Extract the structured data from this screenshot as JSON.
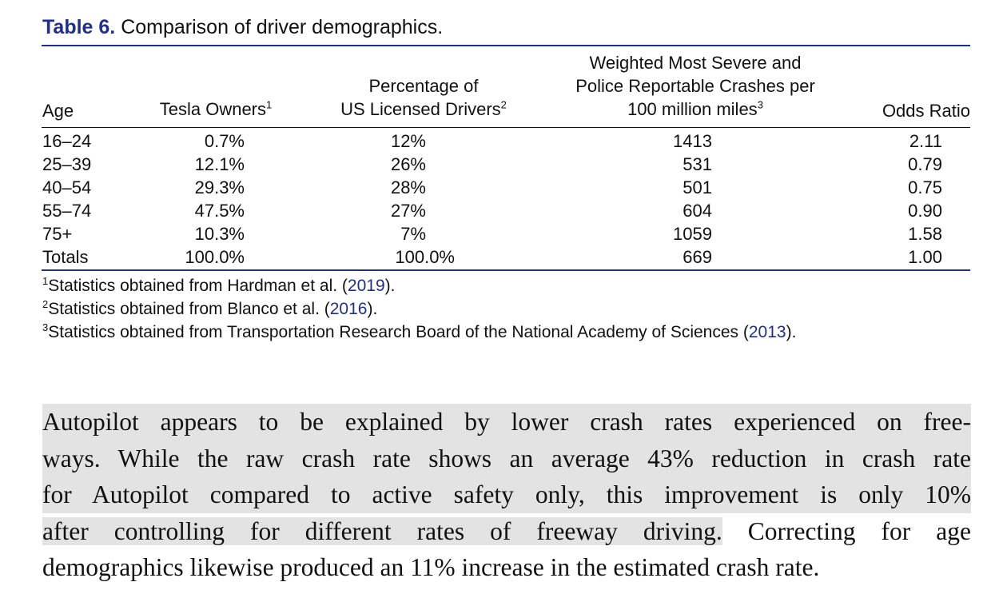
{
  "caption": {
    "label": "Table 6.",
    "text": "Comparison of driver demographics."
  },
  "table": {
    "headers": {
      "age": "Age",
      "tesla": {
        "text": "Tesla Owners",
        "sup": "1"
      },
      "pct_line1": "Percentage of",
      "pct_line2": {
        "text": "US Licensed Drivers",
        "sup": "2"
      },
      "crash_line1": "Weighted Most Severe and",
      "crash_line2": "Police Reportable Crashes per",
      "crash_line3": {
        "text": "100 million miles",
        "sup": "3"
      },
      "odds": "Odds Ratio"
    },
    "rows": [
      {
        "age": "16–24",
        "tesla": "0.7%",
        "pct": "12%",
        "crash": "1413",
        "odds": "2.11"
      },
      {
        "age": "25–39",
        "tesla": "12.1%",
        "pct": "26%",
        "crash": "531",
        "odds": "0.79"
      },
      {
        "age": "40–54",
        "tesla": "29.3%",
        "pct": "28%",
        "crash": "501",
        "odds": "0.75"
      },
      {
        "age": "55–74",
        "tesla": "47.5%",
        "pct": "27%",
        "crash": "604",
        "odds": "0.90"
      },
      {
        "age": "75+",
        "tesla": "10.3%",
        "pct": "7%",
        "crash": "1059",
        "odds": "1.58"
      },
      {
        "age": "Totals",
        "tesla": "100.0%",
        "pct": "100.0%",
        "crash": "669",
        "odds": "1.00"
      }
    ]
  },
  "footnotes": [
    {
      "sup": "1",
      "text": "Statistics obtained from Hardman et al. (",
      "year": "2019",
      "end": ")."
    },
    {
      "sup": "2",
      "text": "Statistics obtained from Blanco et al. (",
      "year": "2016",
      "end": ")."
    },
    {
      "sup": "3",
      "text": "Statistics obtained from Transportation Research Board of the National Academy of Sciences (",
      "year": "2013",
      "end": ")."
    }
  ],
  "body": {
    "line1": "Autopilot appears to be explained by lower crash rates experienced on free-",
    "line2": "ways. While the raw crash rate shows an average 43% reduction in crash rate",
    "line3": "for Autopilot compared to active safety only, this improvement is only 10%",
    "line4_highlight": "after controlling for different rates of freeway driving.",
    "line4_rest": " Correcting for age",
    "line5": "demographics likewise produced an 11% increase in the estimated crash rate."
  }
}
